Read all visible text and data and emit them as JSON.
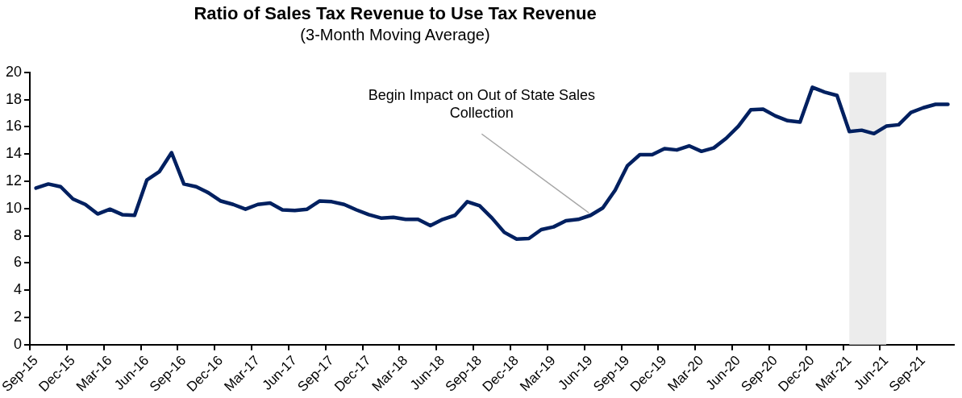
{
  "chart_data": {
    "type": "line",
    "title": "Ratio of Sales Tax Revenue to Use Tax Revenue",
    "subtitle": "(3-Month Moving Average)",
    "categories": [
      "Sep-15",
      null,
      null,
      "Dec-15",
      null,
      null,
      "Mar-16",
      null,
      null,
      "Jun-16",
      null,
      null,
      "Sep-16",
      null,
      null,
      "Dec-16",
      null,
      null,
      "Mar-17",
      null,
      null,
      "Jun-17",
      null,
      null,
      "Sep-17",
      null,
      null,
      "Dec-17",
      null,
      null,
      "Mar-18",
      null,
      null,
      "Jun-18",
      null,
      null,
      "Sep-18",
      null,
      null,
      "Dec-18",
      null,
      null,
      "Mar-19",
      null,
      null,
      "Jun-19",
      null,
      null,
      "Sep-19",
      null,
      null,
      "Dec-19",
      null,
      null,
      "Mar-20",
      null,
      null,
      "Jun-20",
      null,
      null,
      "Sep-20",
      null,
      null,
      "Dec-20",
      null,
      null,
      "Mar-21",
      null,
      null,
      "Jun-21",
      null,
      null,
      "Sep-21",
      null,
      null
    ],
    "series": [
      {
        "color": "#002060",
        "values": [
          11.5,
          11.8,
          11.6,
          10.7,
          10.3,
          9.6,
          9.95,
          9.55,
          9.5,
          12.1,
          12.7,
          14.1,
          11.8,
          11.6,
          11.15,
          10.55,
          10.3,
          9.95,
          10.3,
          10.4,
          9.9,
          9.85,
          9.95,
          10.55,
          10.5,
          10.3,
          9.9,
          9.55,
          9.3,
          9.35,
          9.2,
          9.2,
          8.75,
          9.2,
          9.5,
          10.5,
          10.2,
          9.3,
          8.25,
          7.75,
          7.8,
          8.45,
          8.65,
          9.1,
          9.2,
          9.5,
          10.05,
          11.35,
          13.15,
          13.95,
          13.95,
          14.4,
          14.3,
          14.6,
          14.2,
          14.45,
          15.15,
          16.05,
          17.25,
          17.3,
          16.8,
          16.45,
          16.35,
          18.9,
          18.55,
          18.3,
          15.65,
          15.75,
          15.5,
          16.05,
          16.15,
          17.05,
          17.4,
          17.65,
          17.65
        ]
      }
    ],
    "ylim": [
      0,
      20
    ],
    "yticks": [
      0,
      2,
      4,
      6,
      8,
      10,
      12,
      14,
      16,
      18,
      20
    ],
    "grid": false,
    "legend": false,
    "marker": "none",
    "line_style": "solid",
    "bands": [
      {
        "axis": "x",
        "from": "Mar-21",
        "to": "Jun-21",
        "color": "#ececec"
      }
    ],
    "annotations": [
      {
        "text": "Begin Impact on Out of State Sales Collection",
        "x": "Jun-19",
        "y": 9.5
      }
    ]
  }
}
